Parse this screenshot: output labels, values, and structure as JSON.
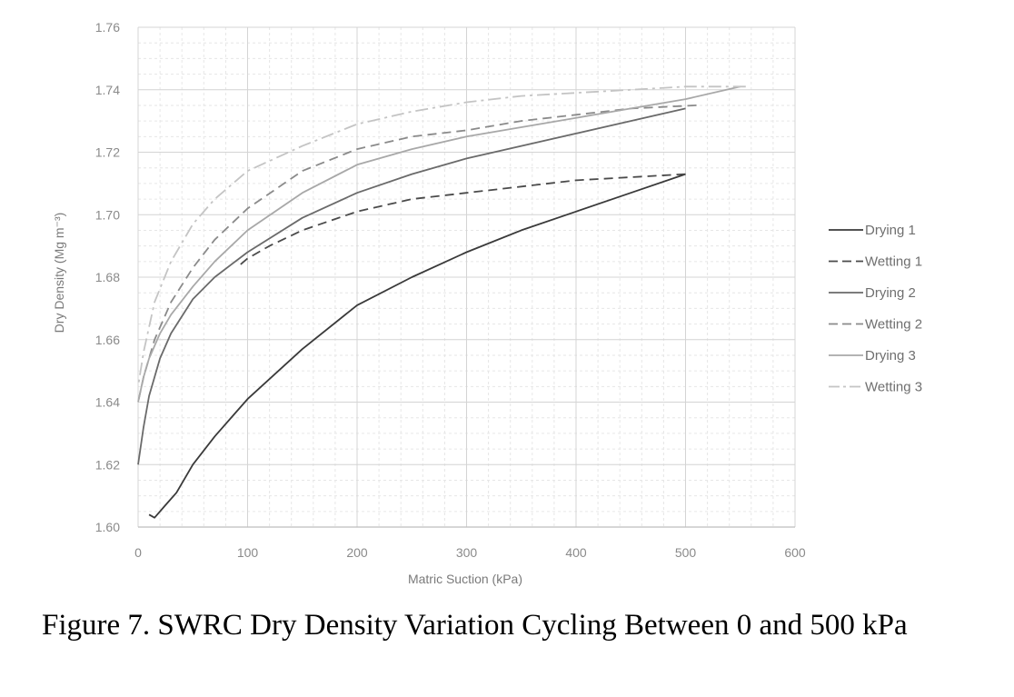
{
  "caption": "Figure 7. SWRC Dry Density Variation Cycling Between 0 and 500 kPa",
  "chart_data": {
    "type": "line",
    "title": "",
    "xlabel": "Matric Suction   (kPa)",
    "ylabel": "Dry Density   (Mg m⁻³)",
    "xlim": [
      0,
      600
    ],
    "ylim": [
      1.6,
      1.76
    ],
    "x_ticks": [
      "0",
      "100",
      "200",
      "300",
      "400",
      "500",
      "600"
    ],
    "y_ticks": [
      "1.60",
      "1.62",
      "1.64",
      "1.66",
      "1.68",
      "1.70",
      "1.72",
      "1.74",
      "1.76"
    ],
    "grid": true,
    "legend_position": "right",
    "series": [
      {
        "name": "Drying 1",
        "color": "#3a3a3a",
        "dash": "solid",
        "x": [
          10,
          15,
          25,
          35,
          50,
          70,
          100,
          150,
          200,
          250,
          300,
          350,
          400,
          450,
          500
        ],
        "y": [
          1.604,
          1.603,
          1.607,
          1.611,
          1.62,
          1.629,
          1.641,
          1.657,
          1.671,
          1.68,
          1.688,
          1.695,
          1.701,
          1.707,
          1.713
        ]
      },
      {
        "name": "Wetting 1",
        "color": "#4a4a4a",
        "dash": "dashed",
        "x": [
          500,
          450,
          400,
          350,
          300,
          250,
          200,
          150,
          120,
          100,
          90
        ],
        "y": [
          1.713,
          1.712,
          1.711,
          1.709,
          1.707,
          1.705,
          1.701,
          1.695,
          1.69,
          1.686,
          1.683
        ]
      },
      {
        "name": "Drying 2",
        "color": "#6a6a6a",
        "dash": "solid",
        "x": [
          0,
          5,
          10,
          20,
          30,
          50,
          70,
          100,
          150,
          200,
          250,
          300,
          350,
          400,
          450,
          500
        ],
        "y": [
          1.62,
          1.632,
          1.642,
          1.654,
          1.662,
          1.673,
          1.68,
          1.688,
          1.699,
          1.707,
          1.713,
          1.718,
          1.722,
          1.726,
          1.73,
          1.734
        ]
      },
      {
        "name": "Wetting 2",
        "color": "#8a8a8a",
        "dash": "dashed",
        "x": [
          510,
          450,
          400,
          350,
          300,
          250,
          200,
          150,
          100,
          70,
          50,
          30,
          15,
          5,
          0
        ],
        "y": [
          1.735,
          1.734,
          1.732,
          1.73,
          1.727,
          1.725,
          1.721,
          1.714,
          1.702,
          1.692,
          1.683,
          1.672,
          1.66,
          1.648,
          1.64
        ]
      },
      {
        "name": "Drying 3",
        "color": "#a8a8a8",
        "dash": "solid",
        "x": [
          0,
          5,
          10,
          20,
          30,
          50,
          70,
          100,
          150,
          200,
          250,
          300,
          350,
          400,
          450,
          500,
          550
        ],
        "y": [
          1.64,
          1.648,
          1.654,
          1.662,
          1.668,
          1.677,
          1.685,
          1.695,
          1.707,
          1.716,
          1.721,
          1.725,
          1.728,
          1.731,
          1.734,
          1.737,
          1.741
        ]
      },
      {
        "name": "Wetting 3",
        "color": "#c4c4c4",
        "dash": "dashdot",
        "x": [
          555,
          500,
          450,
          400,
          350,
          300,
          250,
          200,
          150,
          100,
          70,
          50,
          30,
          15,
          5,
          0
        ],
        "y": [
          1.741,
          1.741,
          1.74,
          1.739,
          1.738,
          1.736,
          1.733,
          1.729,
          1.722,
          1.714,
          1.705,
          1.697,
          1.685,
          1.672,
          1.656,
          1.645
        ]
      }
    ]
  }
}
